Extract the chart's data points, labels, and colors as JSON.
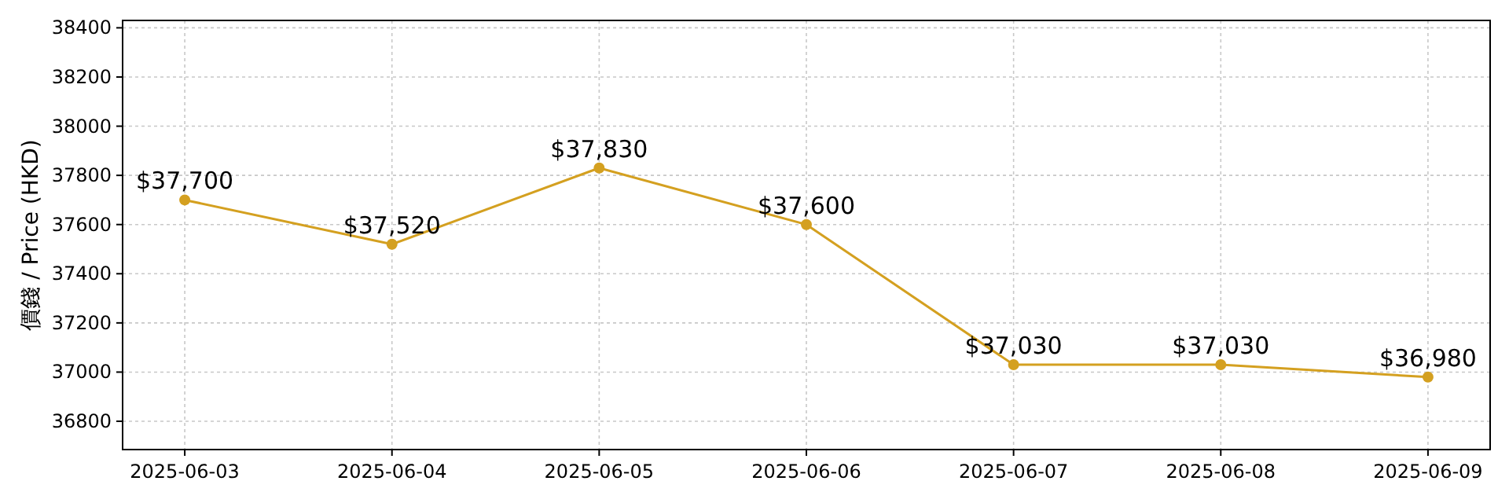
{
  "chart_data": {
    "type": "line",
    "ylabel": "價錢 / Price (HKD)",
    "categories": [
      "2025-06-03",
      "2025-06-04",
      "2025-06-05",
      "2025-06-06",
      "2025-06-07",
      "2025-06-08",
      "2025-06-09"
    ],
    "series": [
      {
        "color": "#d4a020",
        "values": [
          37700,
          37520,
          37830,
          37600,
          37030,
          37030,
          36980
        ],
        "value_labels": [
          "$37,700",
          "$37,520",
          "$37,830",
          "$37,600",
          "$37,030",
          "$37,030",
          "$36,980"
        ]
      }
    ],
    "ylim": [
      36685,
      38430
    ],
    "yticks": [
      36800,
      37000,
      37200,
      37400,
      37600,
      37800,
      38000,
      38200,
      38400
    ],
    "grid": true,
    "marker": "circle",
    "line_style": "solid"
  }
}
